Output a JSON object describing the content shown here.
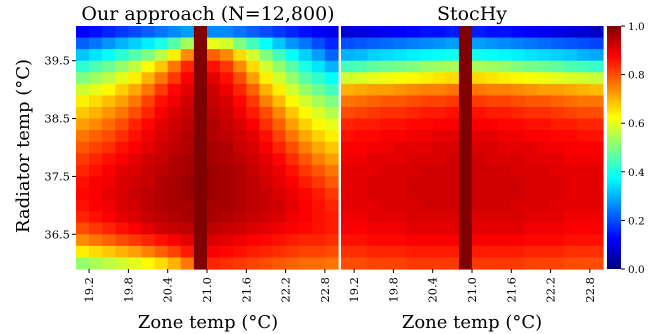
{
  "chart_data": [
    {
      "type": "heatmap",
      "title": "Our approach (N=12,800)",
      "xlabel": "Zone temp (°C)",
      "ylabel": "Radiator temp (°C)",
      "x_ticks": [
        "19.2",
        "19.8",
        "20.4",
        "21.0",
        "21.6",
        "22.2",
        "22.8"
      ],
      "y_ticks": [
        "39.5",
        "38.5",
        "37.5",
        "36.5"
      ],
      "x_range": [
        19.0,
        23.0
      ],
      "y_range": [
        35.9,
        40.1
      ],
      "x": [
        19.1,
        19.3,
        19.5,
        19.7,
        19.9,
        20.1,
        20.3,
        20.5,
        20.7,
        20.9,
        21.1,
        21.3,
        21.5,
        21.7,
        21.9,
        22.1,
        22.3,
        22.5,
        22.7,
        22.9
      ],
      "y": [
        40.0,
        39.8,
        39.6,
        39.4,
        39.2,
        39.0,
        38.8,
        38.6,
        38.4,
        38.2,
        38.0,
        37.8,
        37.6,
        37.4,
        37.2,
        37.0,
        36.8,
        36.6,
        36.4,
        36.2,
        36.0
      ],
      "values": [
        [
          0.12,
          0.14,
          0.16,
          0.18,
          0.2,
          0.22,
          0.24,
          0.26,
          0.28,
          1.0,
          0.26,
          0.26,
          0.24,
          0.22,
          0.2,
          0.18,
          0.16,
          0.14,
          0.12,
          0.1
        ],
        [
          0.22,
          0.24,
          0.27,
          0.3,
          0.33,
          0.36,
          0.4,
          0.46,
          0.54,
          1.0,
          0.6,
          0.58,
          0.5,
          0.44,
          0.38,
          0.32,
          0.27,
          0.24,
          0.2,
          0.16
        ],
        [
          0.32,
          0.35,
          0.38,
          0.42,
          0.46,
          0.5,
          0.56,
          0.64,
          0.74,
          1.0,
          0.78,
          0.74,
          0.66,
          0.58,
          0.5,
          0.44,
          0.38,
          0.33,
          0.28,
          0.22
        ],
        [
          0.42,
          0.45,
          0.48,
          0.52,
          0.56,
          0.62,
          0.68,
          0.76,
          0.84,
          1.0,
          0.86,
          0.82,
          0.74,
          0.66,
          0.58,
          0.52,
          0.46,
          0.4,
          0.35,
          0.3
        ],
        [
          0.5,
          0.53,
          0.56,
          0.6,
          0.64,
          0.7,
          0.76,
          0.82,
          0.88,
          1.0,
          0.9,
          0.86,
          0.8,
          0.72,
          0.64,
          0.58,
          0.52,
          0.46,
          0.42,
          0.38
        ],
        [
          0.58,
          0.6,
          0.63,
          0.67,
          0.71,
          0.76,
          0.82,
          0.87,
          0.9,
          1.0,
          0.92,
          0.89,
          0.84,
          0.78,
          0.7,
          0.64,
          0.58,
          0.52,
          0.48,
          0.44
        ],
        [
          0.64,
          0.66,
          0.69,
          0.72,
          0.76,
          0.81,
          0.86,
          0.89,
          0.92,
          1.0,
          0.93,
          0.91,
          0.87,
          0.82,
          0.75,
          0.69,
          0.63,
          0.58,
          0.54,
          0.5
        ],
        [
          0.68,
          0.7,
          0.73,
          0.76,
          0.8,
          0.84,
          0.88,
          0.91,
          0.93,
          1.0,
          0.94,
          0.92,
          0.89,
          0.85,
          0.8,
          0.74,
          0.68,
          0.63,
          0.59,
          0.55
        ],
        [
          0.72,
          0.74,
          0.77,
          0.8,
          0.84,
          0.87,
          0.9,
          0.92,
          0.94,
          1.0,
          0.95,
          0.93,
          0.91,
          0.88,
          0.83,
          0.78,
          0.72,
          0.67,
          0.63,
          0.6
        ],
        [
          0.76,
          0.78,
          0.8,
          0.83,
          0.86,
          0.89,
          0.91,
          0.93,
          0.95,
          1.0,
          0.95,
          0.94,
          0.92,
          0.9,
          0.86,
          0.81,
          0.76,
          0.71,
          0.67,
          0.64
        ],
        [
          0.79,
          0.81,
          0.83,
          0.86,
          0.88,
          0.9,
          0.92,
          0.94,
          0.95,
          1.0,
          0.96,
          0.95,
          0.93,
          0.91,
          0.88,
          0.84,
          0.8,
          0.75,
          0.71,
          0.68
        ],
        [
          0.82,
          0.84,
          0.86,
          0.88,
          0.9,
          0.92,
          0.93,
          0.95,
          0.96,
          1.0,
          0.96,
          0.95,
          0.94,
          0.92,
          0.9,
          0.87,
          0.83,
          0.79,
          0.75,
          0.72
        ],
        [
          0.84,
          0.86,
          0.88,
          0.9,
          0.91,
          0.93,
          0.94,
          0.95,
          0.96,
          1.0,
          0.97,
          0.96,
          0.95,
          0.93,
          0.91,
          0.89,
          0.86,
          0.82,
          0.79,
          0.76
        ],
        [
          0.86,
          0.88,
          0.89,
          0.91,
          0.92,
          0.93,
          0.95,
          0.96,
          0.97,
          1.0,
          0.97,
          0.96,
          0.95,
          0.94,
          0.92,
          0.9,
          0.88,
          0.85,
          0.82,
          0.79
        ],
        [
          0.87,
          0.88,
          0.9,
          0.91,
          0.93,
          0.94,
          0.95,
          0.96,
          0.97,
          1.0,
          0.97,
          0.96,
          0.95,
          0.94,
          0.93,
          0.91,
          0.89,
          0.87,
          0.85,
          0.82
        ],
        [
          0.86,
          0.88,
          0.89,
          0.91,
          0.92,
          0.94,
          0.95,
          0.96,
          0.96,
          1.0,
          0.96,
          0.96,
          0.95,
          0.94,
          0.93,
          0.92,
          0.9,
          0.88,
          0.86,
          0.84
        ],
        [
          0.84,
          0.86,
          0.88,
          0.9,
          0.91,
          0.93,
          0.94,
          0.95,
          0.96,
          1.0,
          0.96,
          0.95,
          0.94,
          0.93,
          0.92,
          0.91,
          0.89,
          0.88,
          0.86,
          0.85
        ],
        [
          0.8,
          0.82,
          0.84,
          0.86,
          0.88,
          0.9,
          0.92,
          0.93,
          0.94,
          1.0,
          0.94,
          0.93,
          0.92,
          0.91,
          0.9,
          0.89,
          0.88,
          0.87,
          0.86,
          0.85
        ],
        [
          0.74,
          0.76,
          0.78,
          0.8,
          0.82,
          0.84,
          0.86,
          0.88,
          0.9,
          1.0,
          0.91,
          0.9,
          0.89,
          0.88,
          0.87,
          0.86,
          0.85,
          0.84,
          0.84,
          0.83
        ],
        [
          0.64,
          0.66,
          0.68,
          0.7,
          0.72,
          0.75,
          0.78,
          0.81,
          0.85,
          1.0,
          0.88,
          0.87,
          0.86,
          0.85,
          0.84,
          0.83,
          0.82,
          0.81,
          0.81,
          0.8
        ],
        [
          0.52,
          0.54,
          0.56,
          0.58,
          0.6,
          0.63,
          0.66,
          0.7,
          0.76,
          1.0,
          0.84,
          0.83,
          0.82,
          0.81,
          0.8,
          0.79,
          0.78,
          0.77,
          0.77,
          0.76
        ]
      ]
    },
    {
      "type": "heatmap",
      "title": "StocHy",
      "xlabel": "Zone temp (°C)",
      "ylabel": "",
      "x_ticks": [
        "19.2",
        "19.8",
        "20.4",
        "21.0",
        "21.6",
        "22.2",
        "22.8"
      ],
      "x_range": [
        19.0,
        23.0
      ],
      "y_range": [
        35.9,
        40.1
      ],
      "x": [
        19.1,
        19.3,
        19.5,
        19.7,
        19.9,
        20.1,
        20.3,
        20.5,
        20.7,
        20.9,
        21.1,
        21.3,
        21.5,
        21.7,
        21.9,
        22.1,
        22.3,
        22.5,
        22.7,
        22.9
      ],
      "y": [
        40.0,
        39.8,
        39.6,
        39.4,
        39.2,
        39.0,
        38.8,
        38.6,
        38.4,
        38.2,
        38.0,
        37.8,
        37.6,
        37.4,
        37.2,
        37.0,
        36.8,
        36.6,
        36.4,
        36.2,
        36.0
      ],
      "values": [
        [
          0.08,
          0.09,
          0.1,
          0.11,
          0.12,
          0.13,
          0.14,
          0.14,
          0.15,
          1.0,
          0.15,
          0.14,
          0.14,
          0.13,
          0.12,
          0.11,
          0.1,
          0.09,
          0.08,
          0.07
        ],
        [
          0.2,
          0.21,
          0.22,
          0.23,
          0.24,
          0.25,
          0.26,
          0.27,
          0.28,
          1.0,
          0.28,
          0.27,
          0.26,
          0.25,
          0.24,
          0.23,
          0.22,
          0.21,
          0.2,
          0.19
        ],
        [
          0.3,
          0.31,
          0.33,
          0.34,
          0.35,
          0.36,
          0.37,
          0.38,
          0.39,
          1.0,
          0.39,
          0.38,
          0.37,
          0.36,
          0.35,
          0.34,
          0.33,
          0.32,
          0.3,
          0.29
        ],
        [
          0.44,
          0.45,
          0.47,
          0.48,
          0.49,
          0.5,
          0.52,
          0.53,
          0.54,
          1.0,
          0.54,
          0.53,
          0.52,
          0.5,
          0.49,
          0.48,
          0.47,
          0.45,
          0.44,
          0.43
        ],
        [
          0.58,
          0.59,
          0.6,
          0.61,
          0.62,
          0.63,
          0.64,
          0.65,
          0.66,
          1.0,
          0.66,
          0.65,
          0.64,
          0.63,
          0.62,
          0.61,
          0.6,
          0.59,
          0.58,
          0.57
        ],
        [
          0.7,
          0.71,
          0.72,
          0.72,
          0.73,
          0.74,
          0.75,
          0.75,
          0.76,
          1.0,
          0.76,
          0.75,
          0.75,
          0.74,
          0.73,
          0.72,
          0.72,
          0.71,
          0.7,
          0.69
        ],
        [
          0.76,
          0.77,
          0.78,
          0.79,
          0.79,
          0.8,
          0.81,
          0.81,
          0.82,
          1.0,
          0.82,
          0.81,
          0.81,
          0.8,
          0.79,
          0.79,
          0.78,
          0.77,
          0.76,
          0.76
        ],
        [
          0.8,
          0.81,
          0.82,
          0.83,
          0.83,
          0.84,
          0.85,
          0.85,
          0.86,
          1.0,
          0.86,
          0.85,
          0.85,
          0.84,
          0.83,
          0.83,
          0.82,
          0.81,
          0.8,
          0.8
        ],
        [
          0.84,
          0.85,
          0.85,
          0.86,
          0.86,
          0.87,
          0.87,
          0.88,
          0.88,
          1.0,
          0.88,
          0.88,
          0.87,
          0.87,
          0.86,
          0.86,
          0.85,
          0.85,
          0.84,
          0.84
        ],
        [
          0.86,
          0.87,
          0.87,
          0.88,
          0.88,
          0.89,
          0.89,
          0.9,
          0.9,
          1.0,
          0.9,
          0.9,
          0.89,
          0.89,
          0.88,
          0.88,
          0.87,
          0.87,
          0.86,
          0.86
        ],
        [
          0.88,
          0.88,
          0.89,
          0.89,
          0.9,
          0.9,
          0.9,
          0.91,
          0.91,
          1.0,
          0.91,
          0.91,
          0.9,
          0.9,
          0.9,
          0.89,
          0.89,
          0.88,
          0.88,
          0.88
        ],
        [
          0.89,
          0.89,
          0.9,
          0.9,
          0.9,
          0.91,
          0.91,
          0.91,
          0.92,
          1.0,
          0.92,
          0.91,
          0.91,
          0.91,
          0.9,
          0.9,
          0.9,
          0.89,
          0.89,
          0.89
        ],
        [
          0.9,
          0.9,
          0.9,
          0.91,
          0.91,
          0.91,
          0.92,
          0.92,
          0.92,
          1.0,
          0.92,
          0.92,
          0.92,
          0.91,
          0.91,
          0.91,
          0.9,
          0.9,
          0.9,
          0.9
        ],
        [
          0.9,
          0.9,
          0.91,
          0.91,
          0.91,
          0.92,
          0.92,
          0.92,
          0.92,
          1.0,
          0.92,
          0.92,
          0.92,
          0.92,
          0.91,
          0.91,
          0.91,
          0.9,
          0.9,
          0.9
        ],
        [
          0.9,
          0.9,
          0.91,
          0.91,
          0.91,
          0.92,
          0.92,
          0.92,
          0.92,
          1.0,
          0.92,
          0.92,
          0.92,
          0.92,
          0.91,
          0.91,
          0.91,
          0.9,
          0.9,
          0.9
        ],
        [
          0.9,
          0.9,
          0.9,
          0.91,
          0.91,
          0.91,
          0.92,
          0.92,
          0.92,
          1.0,
          0.92,
          0.92,
          0.92,
          0.91,
          0.91,
          0.91,
          0.9,
          0.9,
          0.9,
          0.9
        ],
        [
          0.89,
          0.89,
          0.9,
          0.9,
          0.9,
          0.91,
          0.91,
          0.91,
          0.91,
          1.0,
          0.91,
          0.91,
          0.91,
          0.91,
          0.9,
          0.9,
          0.9,
          0.89,
          0.89,
          0.89
        ],
        [
          0.88,
          0.88,
          0.89,
          0.89,
          0.89,
          0.9,
          0.9,
          0.9,
          0.9,
          1.0,
          0.9,
          0.9,
          0.9,
          0.9,
          0.89,
          0.89,
          0.89,
          0.88,
          0.88,
          0.88
        ],
        [
          0.86,
          0.86,
          0.87,
          0.87,
          0.87,
          0.88,
          0.88,
          0.88,
          0.88,
          1.0,
          0.88,
          0.88,
          0.88,
          0.88,
          0.87,
          0.87,
          0.87,
          0.86,
          0.86,
          0.86
        ],
        [
          0.83,
          0.83,
          0.84,
          0.84,
          0.84,
          0.85,
          0.85,
          0.85,
          0.85,
          1.0,
          0.85,
          0.85,
          0.85,
          0.85,
          0.84,
          0.84,
          0.84,
          0.83,
          0.83,
          0.83
        ],
        [
          0.8,
          0.8,
          0.81,
          0.81,
          0.81,
          0.82,
          0.82,
          0.82,
          0.82,
          1.0,
          0.82,
          0.82,
          0.82,
          0.82,
          0.81,
          0.81,
          0.81,
          0.8,
          0.8,
          0.8
        ]
      ]
    }
  ],
  "colorbar": {
    "colormap": "jet",
    "range": [
      0.0,
      1.0
    ],
    "ticks": [
      "0.0",
      "0.2",
      "0.4",
      "0.6",
      "0.8",
      "1.0"
    ]
  }
}
